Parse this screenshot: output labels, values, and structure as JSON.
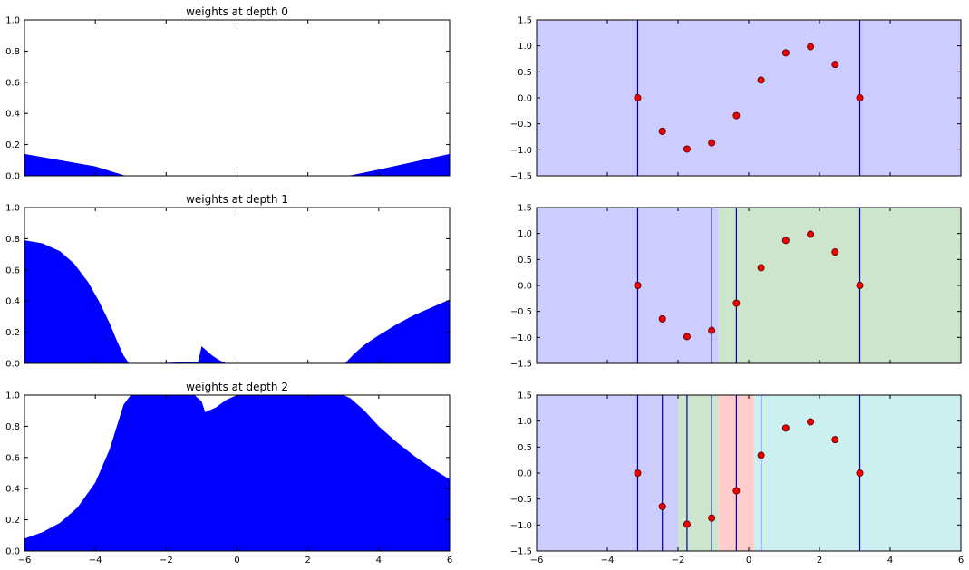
{
  "chart_data": [
    {
      "type": "area",
      "title": "weights at depth 0",
      "xlim": [
        -6,
        6
      ],
      "ylim": [
        0,
        1
      ],
      "xticks": [
        -6,
        -4,
        -2,
        0,
        2,
        4,
        6
      ],
      "yticks": [
        0.0,
        0.2,
        0.4,
        0.6,
        0.8,
        1.0
      ],
      "show_xticklabels": false,
      "fill_color": "#0000ff",
      "x": [
        -6,
        -5,
        -4,
        -3.1416,
        -2,
        0,
        2,
        3.1416,
        4,
        5,
        6
      ],
      "y": [
        0.14,
        0.1,
        0.06,
        0.0,
        0.0,
        0.0,
        0.0,
        0.0,
        0.04,
        0.09,
        0.14
      ]
    },
    {
      "type": "area",
      "title": "weights at depth 1",
      "xlim": [
        -6,
        6
      ],
      "ylim": [
        0,
        1
      ],
      "xticks": [
        -6,
        -4,
        -2,
        0,
        2,
        4,
        6
      ],
      "yticks": [
        0.0,
        0.2,
        0.4,
        0.6,
        0.8,
        1.0
      ],
      "show_xticklabels": false,
      "fill_color": "#0000ff",
      "x": [
        -6,
        -5.5,
        -5,
        -4.6,
        -4.2,
        -3.9,
        -3.6,
        -3.4,
        -3.2,
        -3.05,
        -2.5,
        -1.1,
        -1.0,
        -0.9,
        -0.7,
        -0.5,
        -0.3,
        0,
        2,
        3.05,
        3.3,
        3.6,
        4,
        4.5,
        5,
        5.5,
        6
      ],
      "y": [
        0.79,
        0.77,
        0.72,
        0.64,
        0.52,
        0.4,
        0.26,
        0.15,
        0.05,
        0.0,
        0.0,
        0.01,
        0.11,
        0.09,
        0.05,
        0.02,
        0.0,
        0.0,
        0.0,
        0.0,
        0.06,
        0.12,
        0.18,
        0.25,
        0.31,
        0.36,
        0.41
      ]
    },
    {
      "type": "area",
      "title": "weights at depth 2",
      "xlim": [
        -6,
        6
      ],
      "ylim": [
        0,
        1
      ],
      "xticks": [
        -6,
        -4,
        -2,
        0,
        2,
        4,
        6
      ],
      "yticks": [
        0.0,
        0.2,
        0.4,
        0.6,
        0.8,
        1.0
      ],
      "show_xticklabels": true,
      "fill_color": "#0000ff",
      "x": [
        -6,
        -5.5,
        -5,
        -4.5,
        -4,
        -3.6,
        -3.2,
        -3.0,
        -2.8,
        -1.2,
        -1.0,
        -0.9,
        -0.6,
        -0.3,
        0,
        3.0,
        3.2,
        3.6,
        4,
        4.5,
        5,
        5.5,
        6
      ],
      "y": [
        0.08,
        0.12,
        0.18,
        0.28,
        0.44,
        0.65,
        0.94,
        1.0,
        1.0,
        1.0,
        0.96,
        0.89,
        0.92,
        0.97,
        1.0,
        1.0,
        0.98,
        0.9,
        0.8,
        0.7,
        0.61,
        0.53,
        0.46
      ]
    },
    {
      "type": "scatter",
      "xlim": [
        -6,
        6
      ],
      "ylim": [
        -1.5,
        1.5
      ],
      "xticks": [
        -6,
        -4,
        -2,
        0,
        2,
        4,
        6
      ],
      "yticks": [
        -1.5,
        -1.0,
        -0.5,
        0.0,
        0.5,
        1.0,
        1.5
      ],
      "show_xticklabels": false,
      "regions": [
        {
          "from": -6,
          "to": 6,
          "color": "#ccccff"
        }
      ],
      "vlines": [
        -3.1416,
        3.1416
      ],
      "points": {
        "x": [
          -3.1416,
          -2.4435,
          -1.7453,
          -1.0472,
          -0.3491,
          0.3491,
          1.0472,
          1.7453,
          2.4435,
          3.1416
        ],
        "y": [
          0.0,
          -0.643,
          -0.985,
          -0.866,
          -0.342,
          0.342,
          0.866,
          0.985,
          0.643,
          0.0
        ]
      }
    },
    {
      "type": "scatter",
      "xlim": [
        -6,
        6
      ],
      "ylim": [
        -1.5,
        1.5
      ],
      "xticks": [
        -6,
        -4,
        -2,
        0,
        2,
        4,
        6
      ],
      "yticks": [
        -1.5,
        -1.0,
        -0.5,
        0.0,
        0.5,
        1.0,
        1.5
      ],
      "show_xticklabels": false,
      "regions": [
        {
          "from": -6,
          "to": -0.85,
          "color": "#ccccff"
        },
        {
          "from": -0.85,
          "to": 6,
          "color": "#cce5cc"
        }
      ],
      "vlines": [
        -3.1416,
        -1.0472,
        -0.3491,
        3.1416
      ],
      "points": {
        "x": [
          -3.1416,
          -2.4435,
          -1.7453,
          -1.0472,
          -0.3491,
          0.3491,
          1.0472,
          1.7453,
          2.4435,
          3.1416
        ],
        "y": [
          0.0,
          -0.643,
          -0.985,
          -0.866,
          -0.342,
          0.342,
          0.866,
          0.985,
          0.643,
          0.0
        ]
      }
    },
    {
      "type": "scatter",
      "xlim": [
        -6,
        6
      ],
      "ylim": [
        -1.5,
        1.5
      ],
      "xticks": [
        -6,
        -4,
        -2,
        0,
        2,
        4,
        6
      ],
      "yticks": [
        -1.5,
        -1.0,
        -0.5,
        0.0,
        0.5,
        1.0,
        1.5
      ],
      "show_xticklabels": true,
      "regions": [
        {
          "from": -6,
          "to": -2.0,
          "color": "#ccccff"
        },
        {
          "from": -2.0,
          "to": -0.85,
          "color": "#cce5cc"
        },
        {
          "from": -0.85,
          "to": 0.15,
          "color": "#ffcccc"
        },
        {
          "from": 0.15,
          "to": 6,
          "color": "#ccf0f0"
        }
      ],
      "vlines": [
        -3.1416,
        -2.4435,
        -1.7453,
        -1.0472,
        -0.3491,
        0.3491,
        3.1416
      ],
      "points": {
        "x": [
          -3.1416,
          -2.4435,
          -1.7453,
          -1.0472,
          -0.3491,
          0.3491,
          1.0472,
          1.7453,
          2.4435,
          3.1416
        ],
        "y": [
          0.0,
          -0.643,
          -0.985,
          -0.866,
          -0.342,
          0.342,
          0.866,
          0.985,
          0.643,
          0.0
        ]
      }
    }
  ]
}
